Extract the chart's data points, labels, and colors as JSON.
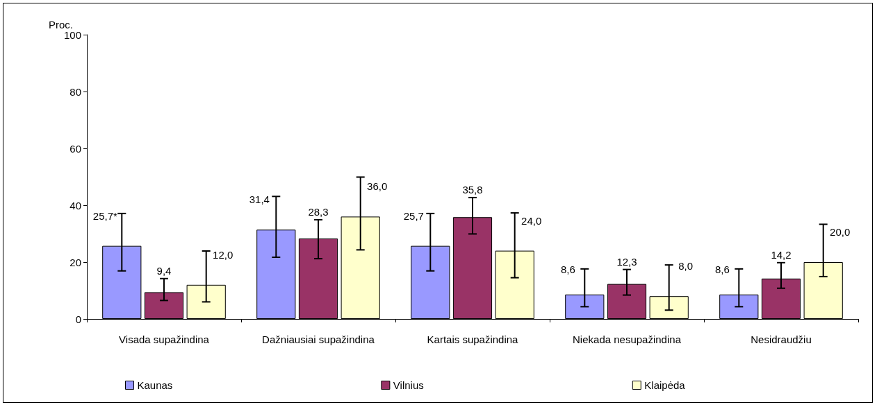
{
  "chart_data": {
    "type": "bar",
    "ylabel": "Proc.",
    "categories": [
      "Visada supažindina",
      "Dažniausiai supažindina",
      "Kartais supažindina",
      "Niekada nesupažindina",
      "Nesidraudžiu"
    ],
    "series": [
      {
        "name": "Kaunas",
        "color": "#9999ff",
        "values": [
          25.7,
          31.4,
          25.7,
          8.6,
          8.6
        ],
        "value_labels": [
          "25,7*",
          "31,4",
          "25,7",
          "8,6",
          "8,6"
        ],
        "errors": [
          [
            16.9,
            37.1
          ],
          [
            21.7,
            43.1
          ],
          [
            16.9,
            37.1
          ],
          [
            4.3,
            17.6
          ],
          [
            4.3,
            17.6
          ]
        ]
      },
      {
        "name": "Vilnius",
        "color": "#993366",
        "values": [
          9.4,
          28.3,
          35.8,
          12.3,
          14.2
        ],
        "value_labels": [
          "9,4",
          "28,3",
          "35,8",
          "12,3",
          "14,2"
        ],
        "errors": [
          [
            6.5,
            14.2
          ],
          [
            21.2,
            34.9
          ],
          [
            29.9,
            42.7
          ],
          [
            8.4,
            17.4
          ],
          [
            10.8,
            19.8
          ]
        ]
      },
      {
        "name": "Klaipėda",
        "color": "#ffffcc",
        "values": [
          12.0,
          36.0,
          24.0,
          8.0,
          20.0
        ],
        "value_labels": [
          "12,0",
          "36,0",
          "24,0",
          "8,0",
          "20,0"
        ],
        "errors": [
          [
            6.0,
            23.9
          ],
          [
            24.3,
            49.9
          ],
          [
            14.5,
            37.3
          ],
          [
            3.1,
            19.0
          ],
          [
            14.9,
            33.3
          ]
        ]
      }
    ],
    "ylim": [
      0,
      100
    ],
    "yticks": [
      0,
      20,
      40,
      60,
      80,
      100
    ],
    "grid": false,
    "legend": "bottom"
  }
}
